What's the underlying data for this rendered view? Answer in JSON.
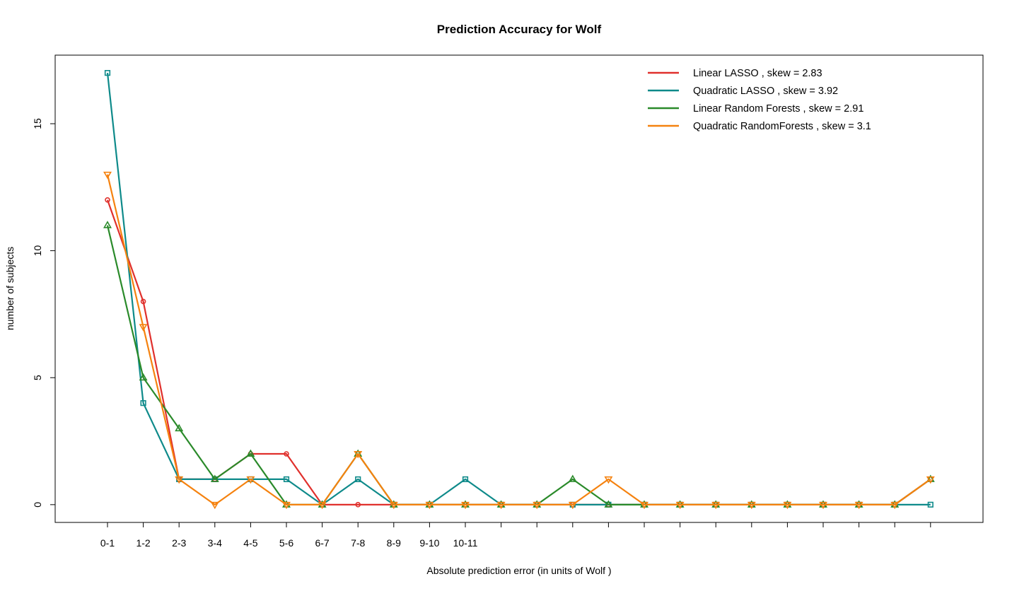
{
  "chart_data": {
    "type": "line",
    "title": "Prediction Accuracy for Wolf",
    "xlabel": "Absolute prediction error (in units of Wolf )",
    "ylabel": "number of subjects",
    "categories": [
      "0-1",
      "1-2",
      "2-3",
      "3-4",
      "4-5",
      "5-6",
      "6-7",
      "7-8",
      "8-9",
      "9-10",
      "10-11",
      "",
      "",
      "",
      "",
      "",
      "",
      "",
      "",
      "",
      "",
      "",
      "",
      ""
    ],
    "yticks": [
      0,
      5,
      10,
      15
    ],
    "ylim": [
      -0.7,
      17.7
    ],
    "grid": false,
    "legend_position": "top-right",
    "series": [
      {
        "name": "Linear LASSO , skew =  2.83",
        "color": "#e0302c",
        "marker": "circle",
        "values": [
          12,
          8,
          1,
          1,
          2,
          2,
          0,
          0,
          0,
          0,
          0,
          0,
          0,
          0,
          0,
          0,
          0,
          0,
          0,
          0,
          0,
          0,
          0,
          1
        ]
      },
      {
        "name": "Quadratic LASSO , skew =  3.92",
        "color": "#0e8a8a",
        "marker": "square",
        "values": [
          17,
          4,
          1,
          1,
          1,
          1,
          0,
          1,
          0,
          0,
          1,
          0,
          0,
          0,
          0,
          0,
          0,
          0,
          0,
          0,
          0,
          0,
          0,
          0
        ]
      },
      {
        "name": "Linear Random Forests , skew =  2.91",
        "color": "#2a8a2a",
        "marker": "triangle-up",
        "values": [
          11,
          5,
          3,
          1,
          2,
          0,
          0,
          2,
          0,
          0,
          0,
          0,
          0,
          1,
          0,
          0,
          0,
          0,
          0,
          0,
          0,
          0,
          0,
          1
        ]
      },
      {
        "name": "Quadratic RandomForests , skew =  3.1",
        "color": "#f5820f",
        "marker": "triangle-down",
        "values": [
          13,
          7,
          1,
          0,
          1,
          0,
          0,
          2,
          0,
          0,
          0,
          0,
          0,
          0,
          1,
          0,
          0,
          0,
          0,
          0,
          0,
          0,
          0,
          1
        ]
      }
    ]
  }
}
